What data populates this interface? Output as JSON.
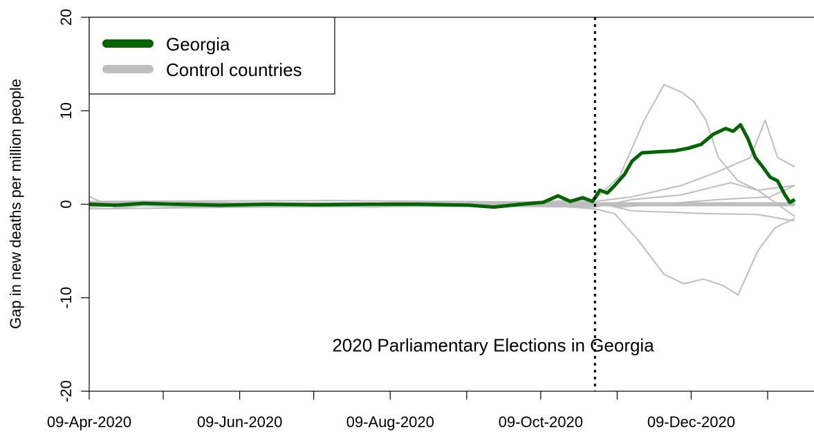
{
  "chart_data": {
    "type": "line",
    "ylabel": "Gap in new deaths per million people",
    "ylim": [
      -20,
      20
    ],
    "yticks": [
      -20,
      -10,
      0,
      10,
      20
    ],
    "xlim": [
      "2020-04-09",
      "2021-01-17"
    ],
    "xticks": [
      "2020-04-09",
      "2020-05-09",
      "2020-06-09",
      "2020-07-09",
      "2020-08-09",
      "2020-09-09",
      "2020-10-09",
      "2020-11-09",
      "2020-12-09",
      "2021-01-09"
    ],
    "xtick_labels": [
      {
        "date": "2020-04-09",
        "label": "09-Apr-2020"
      },
      {
        "date": "2020-06-09",
        "label": "09-Jun-2020"
      },
      {
        "date": "2020-08-09",
        "label": "09-Aug-2020"
      },
      {
        "date": "2020-10-09",
        "label": "09-Oct-2020"
      },
      {
        "date": "2020-12-09",
        "label": "09-Dec-2020"
      }
    ],
    "event": {
      "date": "2020-10-31",
      "label": "2020 Parliamentary Elections in Georgia",
      "label_y": -15
    },
    "legend": {
      "position": "top-left",
      "entries": [
        {
          "label": "Georgia",
          "color": "#006400"
        },
        {
          "label": "Control countries",
          "color": "#bebebe"
        }
      ]
    },
    "colors": {
      "treated": "#006400",
      "control": "#bebebe"
    },
    "series": [
      {
        "name": "Georgia",
        "role": "treated",
        "points": [
          [
            "2020-04-09",
            0
          ],
          [
            "2020-04-20",
            -0.1
          ],
          [
            "2020-05-01",
            0.1
          ],
          [
            "2020-05-15",
            0
          ],
          [
            "2020-06-01",
            -0.1
          ],
          [
            "2020-06-20",
            0
          ],
          [
            "2020-07-10",
            -0.05
          ],
          [
            "2020-08-01",
            0
          ],
          [
            "2020-08-20",
            0
          ],
          [
            "2020-09-10",
            -0.1
          ],
          [
            "2020-09-20",
            -0.3
          ],
          [
            "2020-10-01",
            0
          ],
          [
            "2020-10-10",
            0.2
          ],
          [
            "2020-10-16",
            0.9
          ],
          [
            "2020-10-21",
            0.3
          ],
          [
            "2020-10-26",
            0.7
          ],
          [
            "2020-10-30",
            0.3
          ],
          [
            "2020-11-02",
            1.5
          ],
          [
            "2020-11-05",
            1.2
          ],
          [
            "2020-11-08",
            2.0
          ],
          [
            "2020-11-12",
            3.2
          ],
          [
            "2020-11-15",
            4.6
          ],
          [
            "2020-11-19",
            5.5
          ],
          [
            "2020-11-25",
            5.6
          ],
          [
            "2020-12-02",
            5.7
          ],
          [
            "2020-12-08",
            6.0
          ],
          [
            "2020-12-13",
            6.4
          ],
          [
            "2020-12-18",
            7.5
          ],
          [
            "2020-12-23",
            8.1
          ],
          [
            "2020-12-26",
            7.8
          ],
          [
            "2020-12-29",
            8.5
          ],
          [
            "2021-01-01",
            7.0
          ],
          [
            "2021-01-04",
            5.0
          ],
          [
            "2021-01-07",
            4.0
          ],
          [
            "2021-01-10",
            2.9
          ],
          [
            "2021-01-13",
            2.5
          ],
          [
            "2021-01-16",
            1.0
          ],
          [
            "2021-01-18",
            0.2
          ],
          [
            "2021-01-20",
            0.5
          ]
        ]
      },
      {
        "role": "control",
        "points": [
          [
            "2020-04-09",
            0
          ],
          [
            "2020-10-31",
            0
          ],
          [
            "2021-01-20",
            0
          ]
        ]
      },
      {
        "role": "control",
        "points": [
          [
            "2020-04-09",
            0.8
          ],
          [
            "2020-04-20",
            -0.4
          ],
          [
            "2020-05-20",
            0.3
          ],
          [
            "2020-07-01",
            -0.2
          ],
          [
            "2020-08-20",
            0.3
          ],
          [
            "2020-10-01",
            0.2
          ],
          [
            "2020-10-31",
            0.5
          ],
          [
            "2020-11-10",
            3
          ],
          [
            "2020-11-20",
            9
          ],
          [
            "2020-11-28",
            12.8
          ],
          [
            "2020-12-05",
            12
          ],
          [
            "2020-12-10",
            11
          ],
          [
            "2020-12-15",
            9
          ],
          [
            "2020-12-20",
            5
          ],
          [
            "2020-12-28",
            2.5
          ],
          [
            "2021-01-05",
            1.5
          ],
          [
            "2021-01-20",
            2.0
          ]
        ]
      },
      {
        "role": "control",
        "points": [
          [
            "2020-04-09",
            -0.3
          ],
          [
            "2020-06-01",
            0.2
          ],
          [
            "2020-08-01",
            -0.3
          ],
          [
            "2020-10-01",
            0.1
          ],
          [
            "2020-10-31",
            -0.5
          ],
          [
            "2020-11-08",
            -1
          ],
          [
            "2020-11-18",
            -4
          ],
          [
            "2020-11-28",
            -7.5
          ],
          [
            "2020-12-06",
            -8.5
          ],
          [
            "2020-12-14",
            -8
          ],
          [
            "2020-12-22",
            -8.7
          ],
          [
            "2020-12-28",
            -9.7
          ],
          [
            "2021-01-05",
            -5
          ],
          [
            "2021-01-12",
            -2.5
          ],
          [
            "2021-01-20",
            -1.5
          ]
        ]
      },
      {
        "role": "control",
        "points": [
          [
            "2020-04-09",
            0.3
          ],
          [
            "2020-07-15",
            0.4
          ],
          [
            "2020-10-15",
            0.2
          ],
          [
            "2020-10-31",
            0.3
          ],
          [
            "2020-11-15",
            0.8
          ],
          [
            "2020-12-05",
            2
          ],
          [
            "2020-12-20",
            3.5
          ],
          [
            "2021-01-02",
            5
          ],
          [
            "2021-01-08",
            9
          ],
          [
            "2021-01-13",
            5
          ],
          [
            "2021-01-20",
            4
          ]
        ]
      },
      {
        "role": "control",
        "points": [
          [
            "2020-04-09",
            -0.5
          ],
          [
            "2020-06-15",
            -0.3
          ],
          [
            "2020-09-15",
            -0.2
          ],
          [
            "2020-10-31",
            -0.3
          ],
          [
            "2020-11-15",
            0.5
          ],
          [
            "2020-12-05",
            1.0
          ],
          [
            "2020-12-25",
            2.3
          ],
          [
            "2021-01-05",
            1.5
          ],
          [
            "2021-01-20",
            -1.3
          ]
        ]
      },
      {
        "role": "control",
        "points": [
          [
            "2020-04-09",
            0
          ],
          [
            "2020-05-20",
            -0.3
          ],
          [
            "2020-09-01",
            0.3
          ],
          [
            "2020-10-31",
            0.2
          ],
          [
            "2020-11-15",
            -0.7
          ],
          [
            "2020-12-15",
            -1.0
          ],
          [
            "2021-01-05",
            -1.1
          ],
          [
            "2021-01-20",
            -1.8
          ]
        ]
      },
      {
        "role": "control",
        "points": [
          [
            "2020-04-09",
            0.2
          ],
          [
            "2020-08-01",
            0
          ],
          [
            "2020-10-31",
            0
          ],
          [
            "2020-11-10",
            -0.3
          ],
          [
            "2020-12-01",
            0.1
          ],
          [
            "2020-12-20",
            0.5
          ],
          [
            "2021-01-10",
            0.8
          ],
          [
            "2021-01-20",
            2.0
          ]
        ]
      }
    ]
  }
}
